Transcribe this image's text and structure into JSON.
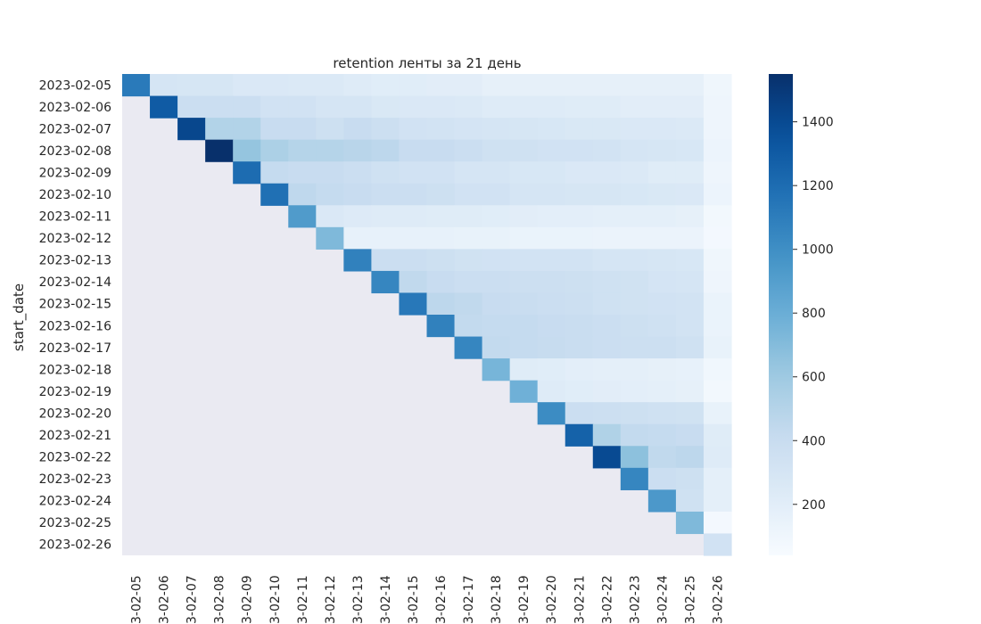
{
  "chart_data": {
    "type": "heatmap",
    "title": "retention ленты за 21 день",
    "ylabel": "start_date",
    "xlabel": "",
    "rows": [
      "2023-02-05",
      "2023-02-06",
      "2023-02-07",
      "2023-02-08",
      "2023-02-09",
      "2023-02-10",
      "2023-02-11",
      "2023-02-12",
      "2023-02-13",
      "2023-02-14",
      "2023-02-15",
      "2023-02-16",
      "2023-02-17",
      "2023-02-18",
      "2023-02-19",
      "2023-02-20",
      "2023-02-21",
      "2023-02-22",
      "2023-02-23",
      "2023-02-24",
      "2023-02-25",
      "2023-02-26"
    ],
    "columns": [
      "2023-02-05",
      "2023-02-06",
      "2023-02-07",
      "2023-02-08",
      "2023-02-09",
      "2023-02-10",
      "2023-02-11",
      "2023-02-12",
      "2023-02-13",
      "2023-02-14",
      "2023-02-15",
      "2023-02-16",
      "2023-02-17",
      "2023-02-18",
      "2023-02-19",
      "2023-02-20",
      "2023-02-21",
      "2023-02-22",
      "2023-02-23",
      "2023-02-24",
      "2023-02-25",
      "2023-02-26"
    ],
    "column_labels": [
      "3-02-05",
      "3-02-06",
      "3-02-07",
      "3-02-08",
      "3-02-09",
      "3-02-10",
      "3-02-11",
      "3-02-12",
      "3-02-13",
      "3-02-14",
      "3-02-15",
      "3-02-16",
      "3-02-17",
      "3-02-18",
      "3-02-19",
      "3-02-20",
      "3-02-21",
      "3-02-22",
      "3-02-23",
      "3-02-24",
      "3-02-25",
      "3-02-26"
    ],
    "values": [
      [
        1120,
        300,
        290,
        290,
        260,
        260,
        250,
        250,
        230,
        210,
        210,
        200,
        200,
        170,
        170,
        170,
        170,
        170,
        170,
        170,
        170,
        100
      ],
      [
        null,
        1300,
        380,
        380,
        380,
        330,
        330,
        300,
        300,
        270,
        260,
        260,
        250,
        230,
        230,
        230,
        220,
        220,
        200,
        200,
        200,
        110
      ],
      [
        null,
        null,
        1420,
        510,
        510,
        400,
        400,
        360,
        400,
        370,
        330,
        320,
        310,
        300,
        290,
        280,
        270,
        270,
        260,
        260,
        250,
        110
      ],
      [
        null,
        null,
        null,
        1550,
        640,
        540,
        500,
        500,
        480,
        460,
        400,
        400,
        380,
        350,
        350,
        330,
        330,
        320,
        300,
        290,
        280,
        120
      ],
      [
        null,
        null,
        null,
        null,
        1200,
        420,
        400,
        400,
        380,
        350,
        330,
        330,
        300,
        300,
        280,
        280,
        260,
        260,
        250,
        220,
        220,
        110
      ],
      [
        null,
        null,
        null,
        null,
        null,
        1180,
        450,
        420,
        400,
        380,
        380,
        360,
        330,
        330,
        300,
        300,
        290,
        290,
        280,
        270,
        260,
        120
      ],
      [
        null,
        null,
        null,
        null,
        null,
        null,
        920,
        260,
        240,
        230,
        230,
        220,
        220,
        210,
        200,
        190,
        190,
        180,
        180,
        180,
        170,
        80
      ],
      [
        null,
        null,
        null,
        null,
        null,
        null,
        null,
        720,
        160,
        160,
        160,
        160,
        150,
        150,
        140,
        140,
        140,
        130,
        130,
        130,
        130,
        70
      ],
      [
        null,
        null,
        null,
        null,
        null,
        null,
        null,
        null,
        1080,
        380,
        380,
        360,
        340,
        330,
        320,
        320,
        320,
        300,
        300,
        290,
        280,
        100
      ],
      [
        null,
        null,
        null,
        null,
        null,
        null,
        null,
        null,
        null,
        1050,
        440,
        400,
        380,
        380,
        370,
        370,
        360,
        350,
        340,
        310,
        300,
        110
      ],
      [
        null,
        null,
        null,
        null,
        null,
        null,
        null,
        null,
        null,
        null,
        1130,
        460,
        440,
        400,
        390,
        380,
        370,
        350,
        340,
        330,
        320,
        140
      ],
      [
        null,
        null,
        null,
        null,
        null,
        null,
        null,
        null,
        null,
        null,
        null,
        1080,
        430,
        420,
        420,
        400,
        390,
        380,
        360,
        350,
        320,
        140
      ],
      [
        null,
        null,
        null,
        null,
        null,
        null,
        null,
        null,
        null,
        null,
        null,
        null,
        1050,
        430,
        420,
        410,
        390,
        380,
        370,
        370,
        350,
        150
      ],
      [
        null,
        null,
        null,
        null,
        null,
        null,
        null,
        null,
        null,
        null,
        null,
        null,
        null,
        750,
        220,
        210,
        190,
        180,
        180,
        170,
        160,
        90
      ],
      [
        null,
        null,
        null,
        null,
        null,
        null,
        null,
        null,
        null,
        null,
        null,
        null,
        null,
        null,
        780,
        230,
        210,
        200,
        190,
        180,
        170,
        80
      ],
      [
        null,
        null,
        null,
        null,
        null,
        null,
        null,
        null,
        null,
        null,
        null,
        null,
        null,
        null,
        null,
        1020,
        380,
        370,
        360,
        350,
        340,
        150
      ],
      [
        null,
        null,
        null,
        null,
        null,
        null,
        null,
        null,
        null,
        null,
        null,
        null,
        null,
        null,
        null,
        null,
        1260,
        520,
        430,
        420,
        400,
        220
      ],
      [
        null,
        null,
        null,
        null,
        null,
        null,
        null,
        null,
        null,
        null,
        null,
        null,
        null,
        null,
        null,
        null,
        null,
        1400,
        670,
        440,
        460,
        230
      ],
      [
        null,
        null,
        null,
        null,
        null,
        null,
        null,
        null,
        null,
        null,
        null,
        null,
        null,
        null,
        null,
        null,
        null,
        null,
        1050,
        380,
        360,
        180
      ],
      [
        null,
        null,
        null,
        null,
        null,
        null,
        null,
        null,
        null,
        null,
        null,
        null,
        null,
        null,
        null,
        null,
        null,
        null,
        null,
        940,
        350,
        180
      ],
      [
        null,
        null,
        null,
        null,
        null,
        null,
        null,
        null,
        null,
        null,
        null,
        null,
        null,
        null,
        null,
        null,
        null,
        null,
        null,
        null,
        720,
        70
      ],
      [
        null,
        null,
        null,
        null,
        null,
        null,
        null,
        null,
        null,
        null,
        null,
        null,
        null,
        null,
        null,
        null,
        null,
        null,
        null,
        null,
        null,
        330
      ]
    ],
    "colorbar": {
      "colormap": "Blues",
      "vmin": 40,
      "vmax": 1550,
      "ticks": [
        "200",
        "400",
        "600",
        "800",
        "1000",
        "1200",
        "1400"
      ],
      "tick_values": [
        200,
        400,
        600,
        800,
        1000,
        1200,
        1400
      ]
    },
    "missing_color": "#eaeaf2",
    "grid": false
  }
}
